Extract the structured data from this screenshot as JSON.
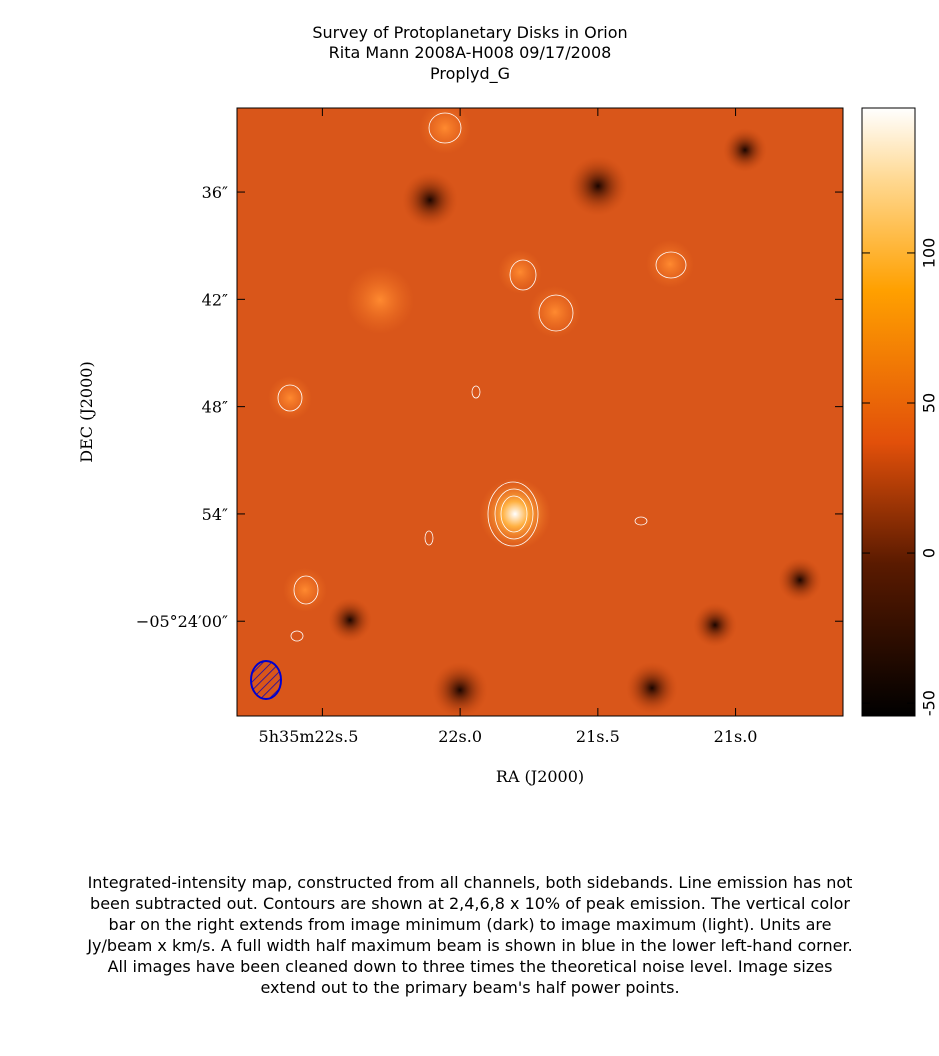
{
  "chart_data": {
    "type": "image",
    "title_lines": [
      "Survey of Protoplanetary Disks in Orion",
      "Rita Mann   2008A-H008   09/17/2008",
      "Proplyd_G"
    ],
    "x_label": "RA (J2000)",
    "y_label": "DEC (J2000)",
    "xlim": [
      22.81,
      20.61
    ],
    "xticks": [
      {
        "value": 22.5,
        "label": "5h35m22s.5"
      },
      {
        "value": 22.0,
        "label": "22s.0"
      },
      {
        "value": 21.5,
        "label": "21s.5"
      },
      {
        "value": 21.0,
        "label": "21s.0"
      }
    ],
    "ylim": [
      65.3,
      31.3
    ],
    "yticks": [
      {
        "value": 36,
        "label": "36″"
      },
      {
        "value": 42,
        "label": "42″"
      },
      {
        "value": 48,
        "label": "48″"
      },
      {
        "value": 54,
        "label": "54″"
      },
      {
        "value": 60,
        "label": "−05°24′00″"
      }
    ],
    "clim": [
      -54.3,
      148.3
    ],
    "cticks": [
      -50,
      0,
      50,
      100
    ],
    "caption": "Integrated-intensity map, constructed from all channels, both sidebands.  Line emission has not been subtracted out.  Contours are shown at 2,4,6,8 x 10% of peak emission.  The vertical color bar on the right extends from image minimum (dark) to image maximum (light).  Units are Jy/beam x km/s.  A full width half maximum beam is shown in blue in the lower left-hand corner.  All images have been cleaned down to three times the theoretical noise level.  Image sizes extend out to the primary beam's half power points."
  }
}
